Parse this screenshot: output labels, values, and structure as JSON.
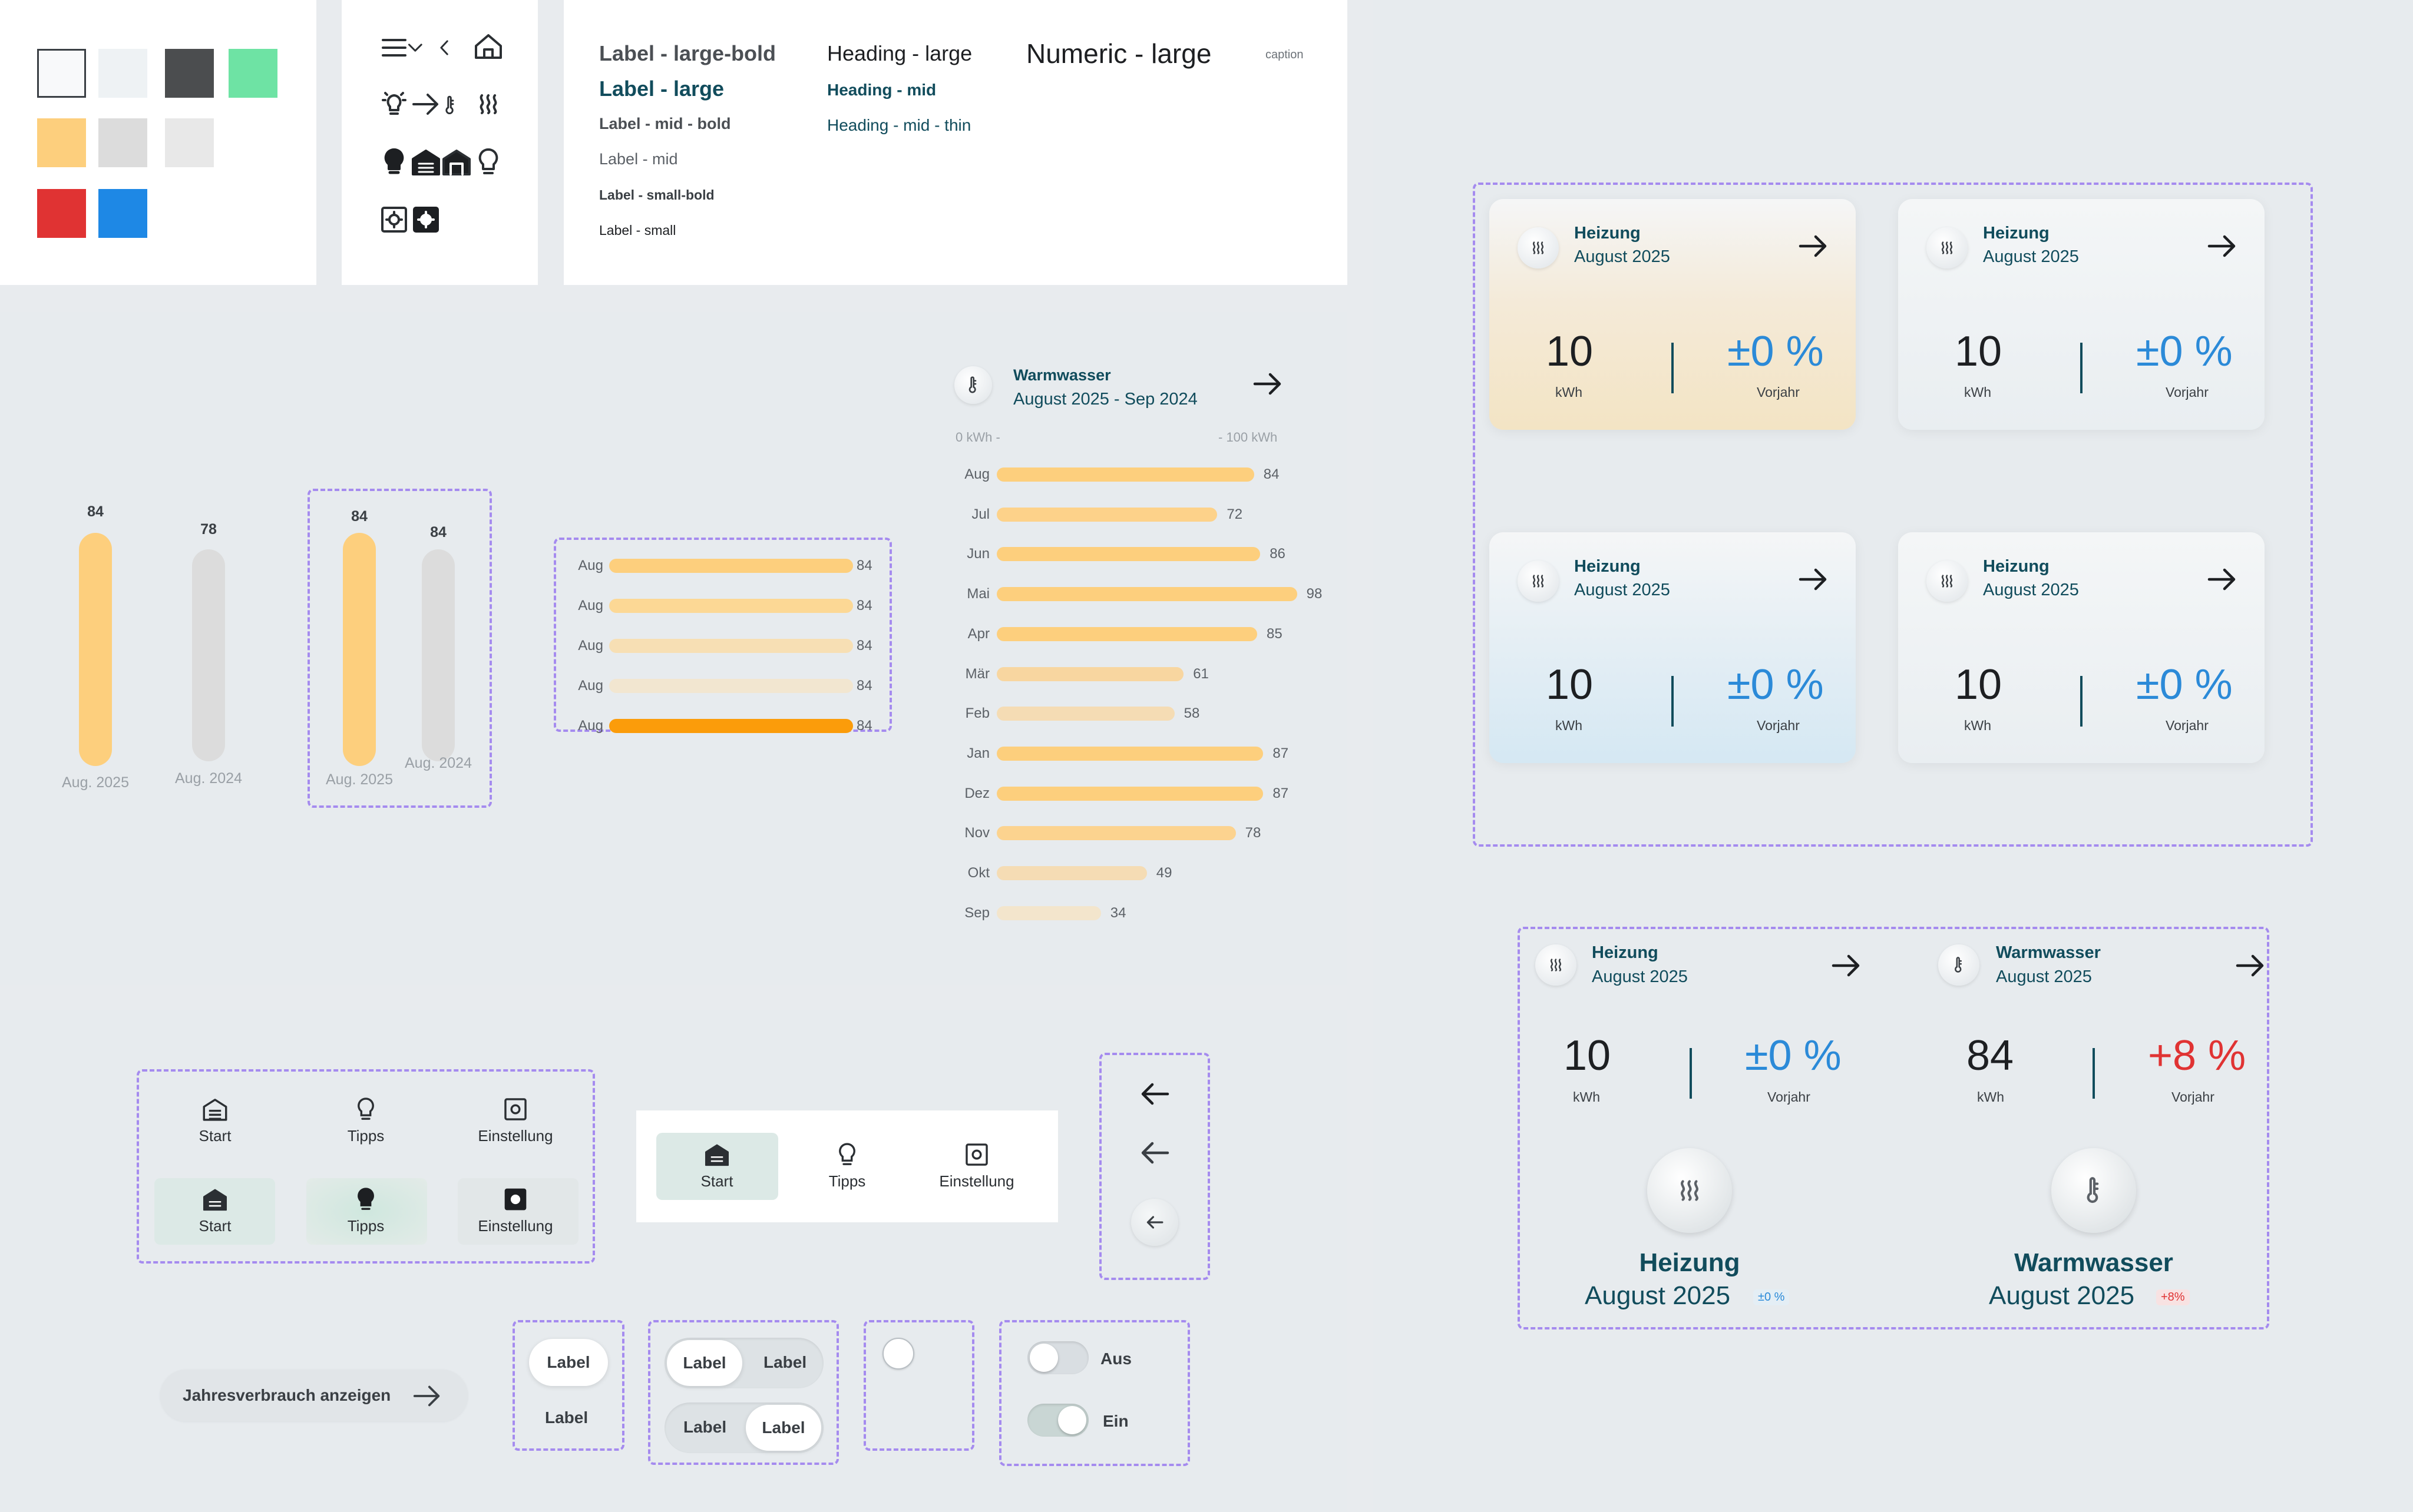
{
  "typography": {
    "label_large_bold": "Label - large-bold",
    "label_large": "Label - large",
    "label_mid_bold": "Label - mid - bold",
    "label_mid": "Label - mid",
    "label_small_bold": "Label - small-bold",
    "label_small": "Label - small",
    "heading_large": "Heading - large",
    "heading_mid": "Heading - mid",
    "heading_mid_thin": "Heading - mid - thin",
    "numeric_large": "Numeric - large",
    "caption": "caption"
  },
  "colors": {
    "swatches": [
      "#f8f9fa",
      "#eef2f4",
      "#4b4d4f",
      "#6ee3a4",
      "#fdcf7d",
      "#dcdcdc",
      "#e8e8e8",
      "#e03333",
      "#1e88e5"
    ],
    "teal": "#114c5c",
    "orange": "#fdcf7d",
    "orange_strong": "#fb9c0a",
    "blue": "#2b8ad8",
    "red": "#e03333"
  },
  "icons": [
    "menu-icon",
    "chevron-down-icon",
    "chevron-left-icon",
    "home-icon",
    "bulb-rays-icon",
    "arrow-right-icon",
    "thermometer-icon",
    "heat-icon",
    "bulb-solid-icon",
    "garage-solid-icon",
    "garage-icon",
    "bulb-outline-icon",
    "settings-outline-icon",
    "settings-solid-icon"
  ],
  "vertical_bars": {
    "group1": [
      {
        "value": "84",
        "label": "Aug. 2025"
      },
      {
        "value": "78",
        "label": "Aug. 2024"
      }
    ],
    "group2": [
      {
        "value": "84",
        "label": "Aug. 2025"
      },
      {
        "value": "84",
        "label": "Aug. 2024"
      }
    ]
  },
  "bar_list": {
    "rows": [
      {
        "label": "Aug",
        "value": "84"
      },
      {
        "label": "Aug",
        "value": "84"
      },
      {
        "label": "Aug",
        "value": "84"
      },
      {
        "label": "Aug",
        "value": "84"
      },
      {
        "label": "Aug",
        "value": "84"
      }
    ]
  },
  "chart_data": {
    "type": "bar",
    "orientation": "horizontal",
    "title": "Warmwasser",
    "subtitle": "August 2025 - Sep 2024",
    "axis_min_label": "0 kWh -",
    "axis_max_label": "- 100 kWh",
    "xlim": [
      0,
      100
    ],
    "categories": [
      "Aug",
      "Jul",
      "Jun",
      "Mai",
      "Apr",
      "Mär",
      "Feb",
      "Jan",
      "Dez",
      "Nov",
      "Okt",
      "Sep"
    ],
    "values": [
      84,
      72,
      86,
      98,
      85,
      61,
      58,
      87,
      87,
      78,
      49,
      34
    ]
  },
  "cards": [
    {
      "title": "Heizung",
      "date": "August 2025",
      "value": "10",
      "unit": "kWh",
      "pct": "±0 %",
      "pct_label": "Vorjahr"
    },
    {
      "title": "Heizung",
      "date": "August 2025",
      "value": "10",
      "unit": "kWh",
      "pct": "±0 %",
      "pct_label": "Vorjahr"
    },
    {
      "title": "Heizung",
      "date": "August 2025",
      "value": "10",
      "unit": "kWh",
      "pct": "±0 %",
      "pct_label": "Vorjahr"
    },
    {
      "title": "Heizung",
      "date": "August 2025",
      "value": "10",
      "unit": "kWh",
      "pct": "±0 %",
      "pct_label": "Vorjahr"
    }
  ],
  "summary": {
    "heizung": {
      "title": "Heizung",
      "date": "August 2025",
      "value": "10",
      "unit": "kWh",
      "pct": "±0 %",
      "pct_label": "Vorjahr",
      "badge": "±0 %"
    },
    "warmwasser": {
      "title": "Warmwasser",
      "date": "August 2025",
      "value": "84",
      "unit": "kWh",
      "pct": "+8 %",
      "pct_label": "Vorjahr",
      "badge": "+8%"
    }
  },
  "nav": {
    "start": "Start",
    "tipps": "Tipps",
    "einstellung": "Einstellung"
  },
  "controls": {
    "year_button": "Jahresverbrauch anzeigen",
    "label": "Label",
    "toggle_off": "Aus",
    "toggle_on": "Ein"
  }
}
